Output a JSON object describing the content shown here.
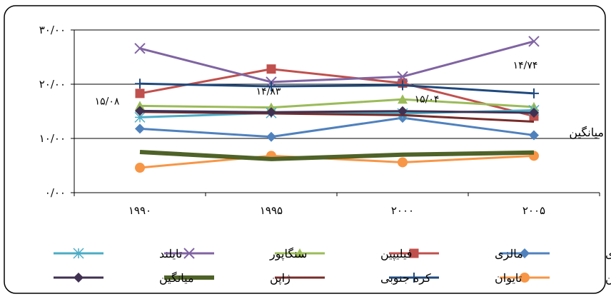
{
  "chart_data": {
    "type": "line",
    "categories": [
      "۱۹۹۰",
      "۱۹۹۵",
      "۲۰۰۰",
      "۲۰۰۵"
    ],
    "y_ticks": [
      "۰/۰۰",
      "۱۰/۰۰",
      "۲۰/۰۰",
      "۳۰/۰۰"
    ],
    "ylim": [
      0,
      30
    ],
    "grid": true,
    "legend_position": "bottom",
    "series": [
      {
        "name": "اندونزی",
        "color": "#4F81BD",
        "marker": "diamond",
        "values": [
          11.8,
          10.3,
          13.8,
          10.6
        ]
      },
      {
        "name": "مالزی",
        "color": "#C0504D",
        "marker": "square",
        "values": [
          18.3,
          22.8,
          20.2,
          14.1
        ]
      },
      {
        "name": "فیلیپین",
        "color": "#9BBB59",
        "marker": "triangle",
        "values": [
          16.0,
          15.7,
          17.2,
          15.8
        ]
      },
      {
        "name": "سنگاپور",
        "color": "#8064A2",
        "marker": "x",
        "values": [
          26.6,
          20.4,
          21.4,
          27.9
        ]
      },
      {
        "name": "تایلند",
        "color": "#4BACC6",
        "marker": "star",
        "values": [
          13.9,
          14.7,
          14.6,
          15.2
        ]
      },
      {
        "name": "چین",
        "color": "#F79646",
        "marker": "circle",
        "values": [
          4.6,
          6.8,
          5.6,
          6.8
        ]
      },
      {
        "name": "تایوان",
        "color": "#1F497D",
        "marker": "plus",
        "values": [
          20.1,
          19.6,
          19.8,
          18.3
        ]
      },
      {
        "name": "کره جنوبی",
        "color": "#772C2A",
        "marker": "none",
        "values": [
          14.9,
          14.6,
          14.3,
          13.1
        ]
      },
      {
        "name": "ژاپن",
        "color": "#4F6228",
        "marker": "none",
        "thick": true,
        "values": [
          7.5,
          6.2,
          7.0,
          7.4
        ]
      },
      {
        "name": "میانگین",
        "color": "#403152",
        "marker": "diamond",
        "values": [
          15.08,
          14.83,
          15.04,
          14.74
        ]
      }
    ],
    "data_labels": [
      {
        "text": "۱۵/۰۸",
        "category_index": 0,
        "value": 15.08
      },
      {
        "text": "۱۴/۸۳",
        "category_index": 1,
        "value": 14.83
      },
      {
        "text": "۱۵/۰۴",
        "category_index": 2,
        "value": 15.04
      },
      {
        "text": "۱۴/۷۴",
        "category_index": 3,
        "value": 14.74
      }
    ],
    "annotation": "میانگین"
  }
}
